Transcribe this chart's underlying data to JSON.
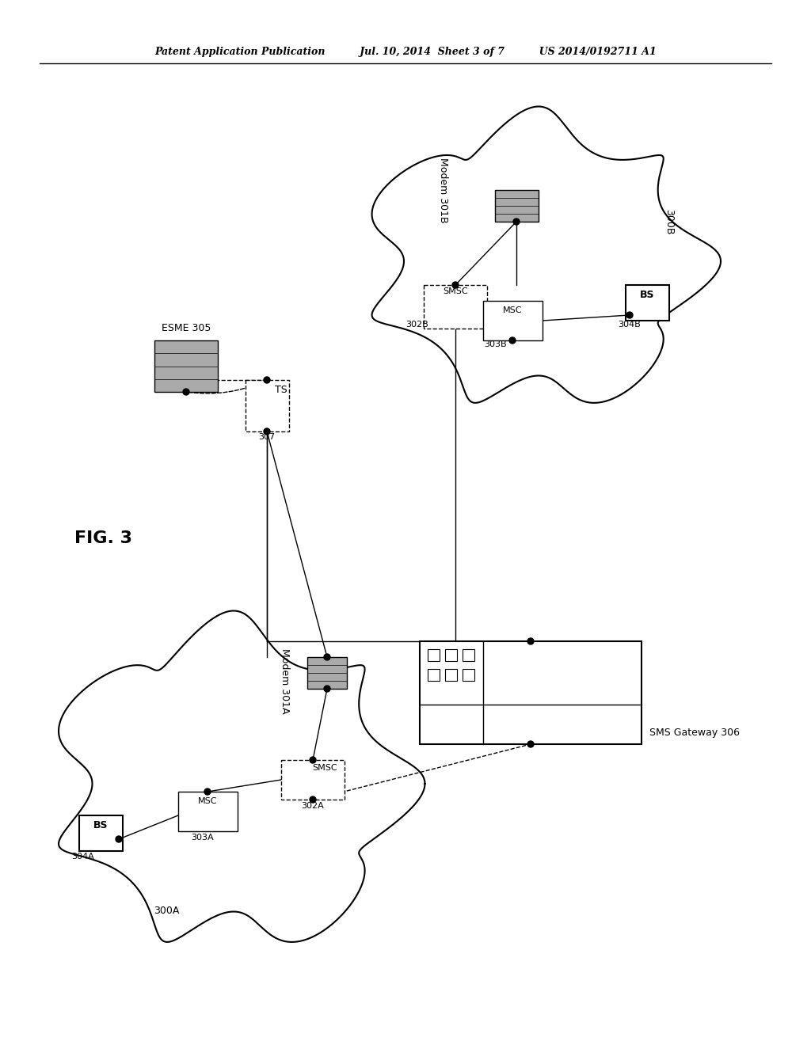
{
  "title_left": "Patent Application Publication",
  "title_mid": "Jul. 10, 2014  Sheet 3 of 7",
  "title_right": "US 2014/0192711 A1",
  "fig_label": "FIG. 3",
  "bg_color": "#ffffff",
  "line_color": "#000000",
  "box_color": "#ffffff",
  "cloud_color": "#ffffff",
  "modem_color": "#aaaaaa",
  "server_color": "#aaaaaa",
  "labels": {
    "ESME": "ESME 305",
    "TS": "TS",
    "307": "307",
    "modem301A": "Modem 301A",
    "modem301B": "Modem 301B",
    "300A": "300A",
    "300B": "300B",
    "302A": "302A",
    "302B": "302B",
    "303A": "303A",
    "303B": "303B",
    "304A": "304A",
    "304B": "304B",
    "SMSC_A": "SMSC",
    "SMSC_B": "SMSC",
    "MSC_A": "MSC",
    "MSC_B": "MSC",
    "BS_A": "BS",
    "BS_B": "BS",
    "SMS_GW": "SMS Gateway 306"
  }
}
